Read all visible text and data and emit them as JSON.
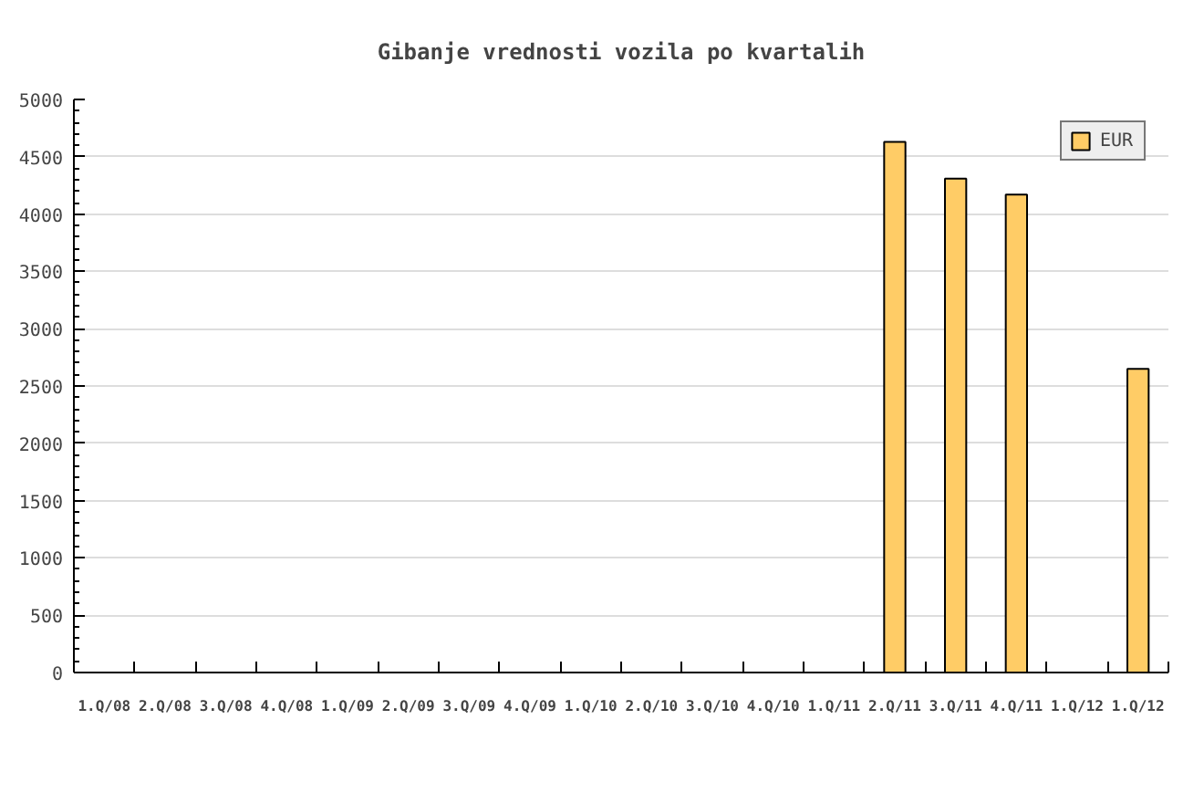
{
  "chart_data": {
    "type": "bar",
    "title": "Gibanje vrednosti vozila po kvartalih",
    "categories": [
      "1.Q/08",
      "2.Q/08",
      "3.Q/08",
      "4.Q/08",
      "1.Q/09",
      "2.Q/09",
      "3.Q/09",
      "4.Q/09",
      "1.Q/10",
      "2.Q/10",
      "3.Q/10",
      "4.Q/10",
      "1.Q/11",
      "2.Q/11",
      "3.Q/11",
      "4.Q/11",
      "1.Q/12",
      "1.Q/12"
    ],
    "series": [
      {
        "name": "EUR",
        "color": "#ffcc66",
        "values": [
          null,
          null,
          null,
          null,
          null,
          null,
          null,
          null,
          null,
          null,
          null,
          null,
          null,
          4630,
          4310,
          4170,
          null,
          2650
        ]
      }
    ],
    "ylim": [
      0,
      5000
    ],
    "yticks": [
      0,
      500,
      1000,
      1500,
      2000,
      2500,
      3000,
      3500,
      4000,
      4500,
      5000
    ],
    "grid": "y",
    "legend": "top right"
  }
}
